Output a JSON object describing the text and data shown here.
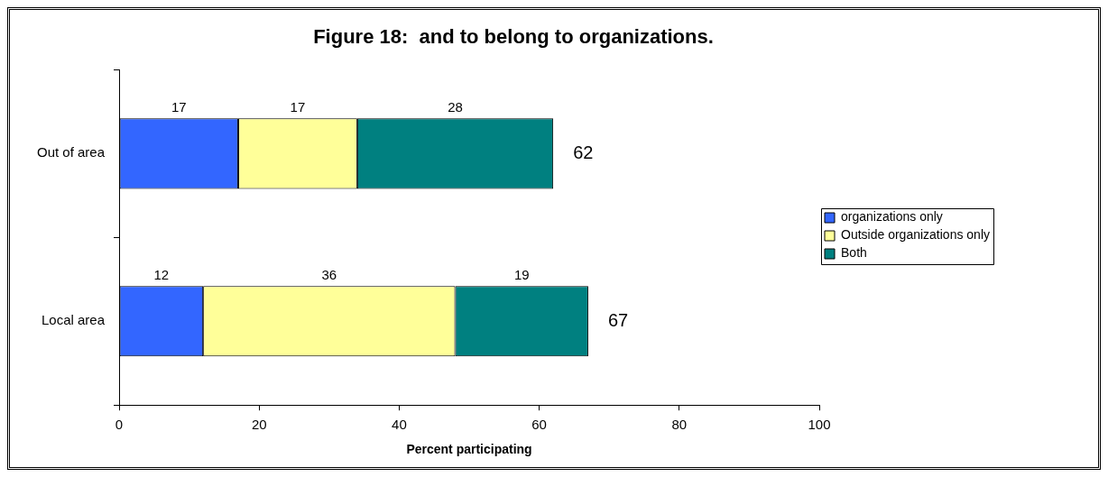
{
  "chart_data": {
    "type": "bar",
    "orientation": "horizontal",
    "stacked": true,
    "title": "Figure 18:  and to belong to organizations.",
    "xlabel": "Percent participating",
    "categories": [
      "Out of area",
      "Local area"
    ],
    "series": [
      {
        "name": "organizations only",
        "color": "#3366ff",
        "values": [
          17,
          12
        ]
      },
      {
        "name": "Outside organizations only",
        "color": "#ffff99",
        "values": [
          17,
          36
        ]
      },
      {
        "name": "Both",
        "color": "#008080",
        "values": [
          28,
          19
        ]
      }
    ],
    "xlim": [
      0,
      100
    ],
    "xticks": [
      0,
      20,
      40,
      60,
      80,
      100
    ],
    "data_labels": true,
    "totals": [
      "62",
      "67"
    ],
    "legend": "right"
  }
}
